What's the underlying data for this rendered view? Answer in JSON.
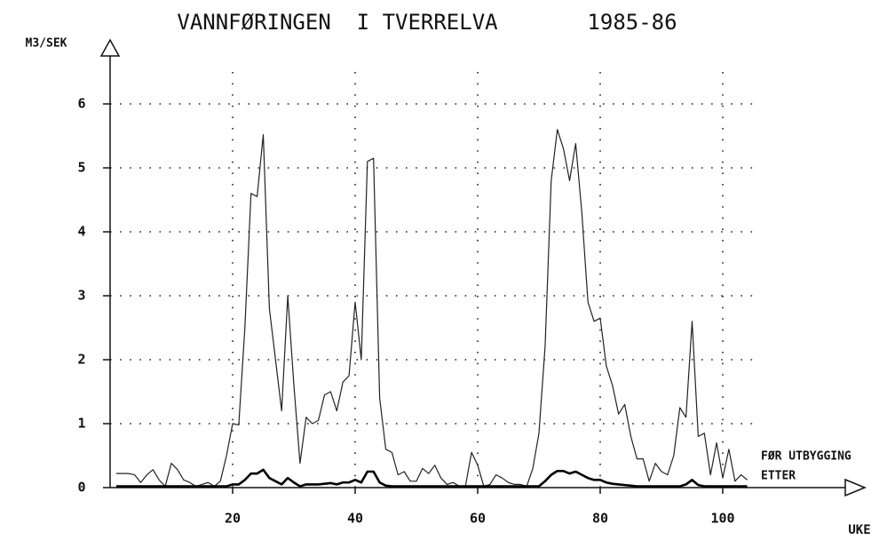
{
  "chart_data": {
    "type": "line",
    "title": "VANNFØRINGEN  I TVERRELVA",
    "subtitle": "1985-86",
    "ylabel": "M3/SEK",
    "xlabel": "UKE",
    "x": [
      1,
      2,
      3,
      4,
      5,
      6,
      7,
      8,
      9,
      10,
      11,
      12,
      13,
      14,
      15,
      16,
      17,
      18,
      19,
      20,
      21,
      22,
      23,
      24,
      25,
      26,
      27,
      28,
      29,
      30,
      31,
      32,
      33,
      34,
      35,
      36,
      37,
      38,
      39,
      40,
      41,
      42,
      43,
      44,
      45,
      46,
      47,
      48,
      49,
      50,
      51,
      52,
      53,
      54,
      55,
      56,
      57,
      58,
      59,
      60,
      61,
      62,
      63,
      64,
      65,
      66,
      67,
      68,
      69,
      70,
      71,
      72,
      73,
      74,
      75,
      76,
      77,
      78,
      79,
      80,
      81,
      82,
      83,
      84,
      85,
      86,
      87,
      88,
      89,
      90,
      91,
      92,
      93,
      94,
      95,
      96,
      97,
      98,
      99,
      100,
      101,
      102,
      103,
      104
    ],
    "series": [
      {
        "name": "FØR UTBYGGING",
        "color": "#222222",
        "width": 1.2,
        "values": [
          0.22,
          0.22,
          0.22,
          0.2,
          0.08,
          0.2,
          0.28,
          0.12,
          0.02,
          0.38,
          0.28,
          0.12,
          0.08,
          0.02,
          0.05,
          0.08,
          0.02,
          0.1,
          0.5,
          1.0,
          0.98,
          2.5,
          4.6,
          4.55,
          5.52,
          2.8,
          2.0,
          1.2,
          3.0,
          1.6,
          0.38,
          1.1,
          1.0,
          1.05,
          1.45,
          1.5,
          1.2,
          1.65,
          1.75,
          2.9,
          2.0,
          5.1,
          5.15,
          1.4,
          0.6,
          0.55,
          0.2,
          0.25,
          0.1,
          0.1,
          0.3,
          0.22,
          0.35,
          0.15,
          0.05,
          0.08,
          0.02,
          0.02,
          0.55,
          0.35,
          0.02,
          0.05,
          0.2,
          0.15,
          0.08,
          0.05,
          0.05,
          0.02,
          0.3,
          0.85,
          2.2,
          4.8,
          5.6,
          5.3,
          4.8,
          5.38,
          4.3,
          2.9,
          2.6,
          2.65,
          1.9,
          1.6,
          1.15,
          1.3,
          0.8,
          0.45,
          0.45,
          0.1,
          0.38,
          0.25,
          0.2,
          0.5,
          1.25,
          1.1,
          2.6,
          0.8,
          0.85,
          0.2,
          0.7,
          0.15,
          0.6,
          0.1,
          0.2,
          0.12
        ]
      },
      {
        "name": "ETTER",
        "color": "#000000",
        "width": 2.6,
        "values": [
          0.02,
          0.02,
          0.02,
          0.02,
          0.02,
          0.02,
          0.02,
          0.02,
          0.02,
          0.02,
          0.02,
          0.02,
          0.02,
          0.02,
          0.02,
          0.02,
          0.02,
          0.02,
          0.02,
          0.05,
          0.05,
          0.12,
          0.22,
          0.22,
          0.28,
          0.15,
          0.1,
          0.05,
          0.15,
          0.08,
          0.02,
          0.05,
          0.05,
          0.05,
          0.06,
          0.07,
          0.05,
          0.08,
          0.08,
          0.12,
          0.08,
          0.25,
          0.25,
          0.08,
          0.03,
          0.02,
          0.02,
          0.02,
          0.02,
          0.02,
          0.02,
          0.02,
          0.02,
          0.02,
          0.02,
          0.02,
          0.02,
          0.02,
          0.02,
          0.02,
          0.02,
          0.02,
          0.02,
          0.02,
          0.02,
          0.02,
          0.02,
          0.02,
          0.02,
          0.02,
          0.1,
          0.2,
          0.26,
          0.26,
          0.22,
          0.25,
          0.2,
          0.15,
          0.12,
          0.12,
          0.08,
          0.06,
          0.05,
          0.04,
          0.03,
          0.02,
          0.02,
          0.02,
          0.02,
          0.02,
          0.02,
          0.02,
          0.02,
          0.05,
          0.12,
          0.04,
          0.02,
          0.02,
          0.02,
          0.02,
          0.02,
          0.02,
          0.02,
          0.02
        ]
      }
    ],
    "xlim": [
      0,
      120
    ],
    "xticks": [
      20,
      40,
      60,
      80,
      100
    ],
    "ylim": [
      0,
      7
    ],
    "yticks": [
      0,
      1,
      2,
      3,
      4,
      5,
      6
    ],
    "grid": true
  }
}
